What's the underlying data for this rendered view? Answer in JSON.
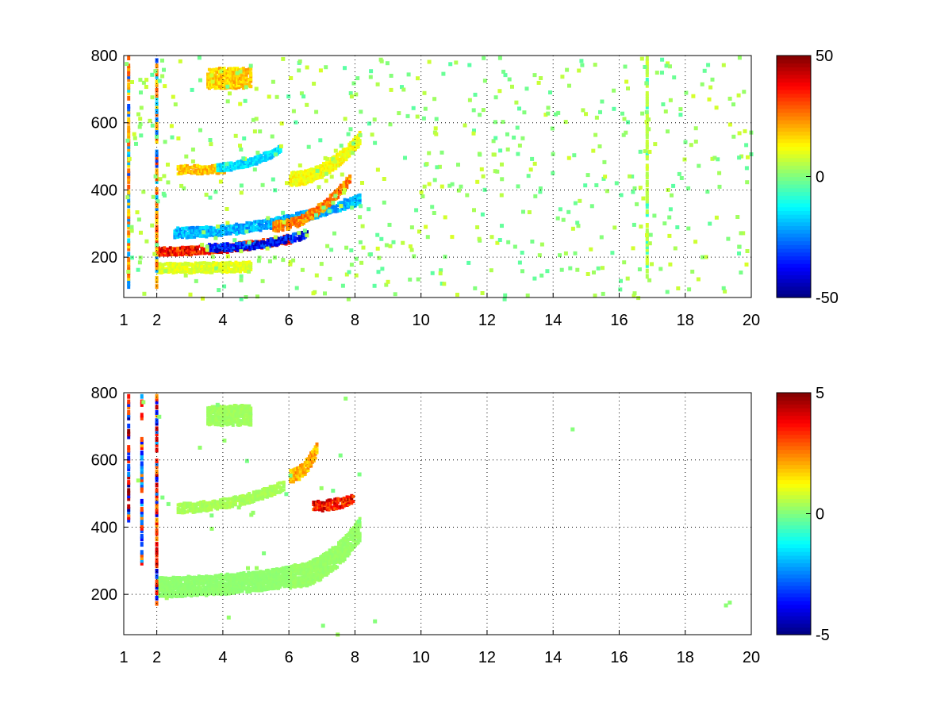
{
  "chart_data": [
    {
      "type": "heatmap",
      "title": "",
      "xlabel": "",
      "ylabel": "",
      "xlim": [
        1,
        20
      ],
      "ylim": [
        80,
        800
      ],
      "xticks": [
        1,
        2,
        4,
        6,
        8,
        10,
        12,
        14,
        16,
        18,
        20
      ],
      "yticks": [
        200,
        400,
        600,
        800
      ],
      "grid": true,
      "colorbar": {
        "colormap": "jet",
        "min": -50,
        "max": 50,
        "ticks": [
          50,
          0,
          -50
        ]
      },
      "features": [
        {
          "x_start": 2.0,
          "x_end": 6.0,
          "y_start": 225,
          "y_end": 262,
          "width": 26,
          "value": 45
        },
        {
          "x_start": 3.5,
          "x_end": 6.5,
          "y_start": 235,
          "y_end": 275,
          "width": 22,
          "value": -45
        },
        {
          "x_start": 2.5,
          "x_end": 8.1,
          "y_start": 280,
          "y_end": 380,
          "width": 30,
          "value": -25
        },
        {
          "x_start": 5.5,
          "x_end": 7.8,
          "y_start": 300,
          "y_end": 440,
          "width": 30,
          "value": 30
        },
        {
          "x_start": 2.6,
          "x_end": 4.0,
          "y_start": 468,
          "y_end": 470,
          "width": 26,
          "value": 22
        },
        {
          "x_start": 3.8,
          "x_end": 5.7,
          "y_start": 475,
          "y_end": 530,
          "width": 24,
          "value": -20
        },
        {
          "x_start": 6.0,
          "x_end": 8.1,
          "y_start": 440,
          "y_end": 560,
          "width": 40,
          "value": 15
        },
        {
          "x_start": 2.0,
          "x_end": 4.8,
          "y_start": 175,
          "y_end": 180,
          "width": 30,
          "value": 12
        },
        {
          "x_start": 3.5,
          "x_end": 4.8,
          "y_start": 740,
          "y_end": 740,
          "width": 60,
          "value": 22
        }
      ],
      "vertical_streaks": [
        {
          "x": 16.8,
          "y0": 150,
          "y1": 800,
          "value": 8
        },
        {
          "x": 1.1,
          "y0": 120,
          "y1": 800,
          "value": 28
        },
        {
          "x": 1.95,
          "y0": 120,
          "y1": 800,
          "value": 30
        }
      ]
    },
    {
      "type": "heatmap",
      "title": "",
      "xlabel": "",
      "ylabel": "",
      "xlim": [
        1,
        20
      ],
      "ylim": [
        80,
        800
      ],
      "xticks": [
        1,
        2,
        4,
        6,
        8,
        10,
        12,
        14,
        16,
        18,
        20
      ],
      "yticks": [
        200,
        400,
        600,
        800
      ],
      "grid": true,
      "colorbar": {
        "colormap": "jet",
        "min": -5,
        "max": 5,
        "ticks": [
          5,
          0,
          -5
        ]
      },
      "features": [
        {
          "x_start": 2.0,
          "x_end": 6.0,
          "y_start": 230,
          "y_end": 260,
          "width": 60,
          "value": 0.2
        },
        {
          "x_start": 6.0,
          "x_end": 8.1,
          "y_start": 260,
          "y_end": 400,
          "width": 70,
          "value": 0.3
        },
        {
          "x_start": 2.6,
          "x_end": 5.8,
          "y_start": 465,
          "y_end": 530,
          "width": 30,
          "value": 0.5
        },
        {
          "x_start": 3.5,
          "x_end": 4.8,
          "y_start": 740,
          "y_end": 740,
          "width": 60,
          "value": 0.4
        },
        {
          "x_start": 6.0,
          "x_end": 6.8,
          "y_start": 560,
          "y_end": 640,
          "width": 40,
          "value": 2.5
        },
        {
          "x_start": 6.7,
          "x_end": 7.9,
          "y_start": 470,
          "y_end": 490,
          "width": 30,
          "value": 4.5
        }
      ],
      "vertical_streaks": [
        {
          "x": 1.1,
          "y0": 420,
          "y1": 800,
          "value": 4.5
        },
        {
          "x": 1.95,
          "y0": 180,
          "y1": 800,
          "value": 4.0
        },
        {
          "x": 1.5,
          "y0": 300,
          "y1": 800,
          "value": -3.5
        }
      ]
    }
  ]
}
